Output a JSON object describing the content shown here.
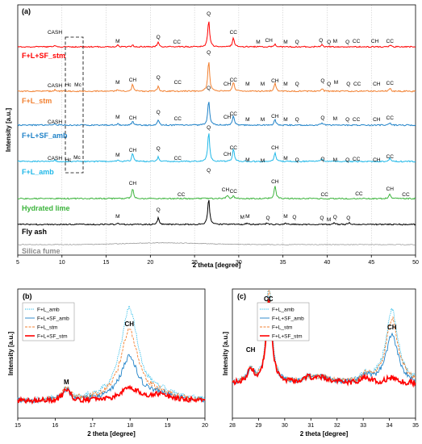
{
  "chart_data": [
    {
      "panel": "(a)",
      "type": "line",
      "xlabel": "2 theta [degree]",
      "ylabel": "Intensity [a.u.]",
      "xlim": [
        5,
        50
      ],
      "xticks": [
        5,
        10,
        15,
        20,
        25,
        30,
        35,
        40,
        45,
        50
      ],
      "grid": true,
      "series": [
        {
          "name": "F+L+SF_stm",
          "color": "#ff0000",
          "peaks": [
            [
              9.2,
              0.8
            ],
            [
              16.3,
              1.2
            ],
            [
              18.0,
              1.0
            ],
            [
              20.9,
              3.0
            ],
            [
              26.6,
              18.0
            ],
            [
              29.4,
              6.0
            ],
            [
              34.1,
              1.6
            ],
            [
              39.4,
              1.5
            ],
            [
              47.1,
              1.2
            ]
          ]
        },
        {
          "name": "F+L_stm",
          "color": "#f28030",
          "peaks": [
            [
              9.2,
              1.0
            ],
            [
              16.3,
              1.2
            ],
            [
              18.0,
              4.5
            ],
            [
              20.9,
              3.0
            ],
            [
              26.6,
              20.0
            ],
            [
              29.4,
              6.0
            ],
            [
              34.1,
              5.5
            ],
            [
              39.4,
              1.8
            ],
            [
              47.1,
              1.8
            ]
          ]
        },
        {
          "name": "F+L+SF_amb",
          "color": "#1f82c8",
          "peaks": [
            [
              9.2,
              0.8
            ],
            [
              16.3,
              1.0
            ],
            [
              18.0,
              2.5
            ],
            [
              20.9,
              3.0
            ],
            [
              26.6,
              16.0
            ],
            [
              29.4,
              6.0
            ],
            [
              34.1,
              3.5
            ],
            [
              39.4,
              1.5
            ],
            [
              47.1,
              1.3
            ]
          ]
        },
        {
          "name": "F+L_amb",
          "color": "#20b8e8",
          "peaks": [
            [
              9.2,
              1.0
            ],
            [
              16.3,
              1.0
            ],
            [
              18.0,
              5.0
            ],
            [
              20.9,
              3.0
            ],
            [
              26.6,
              19.0
            ],
            [
              29.4,
              8.0
            ],
            [
              34.1,
              6.0
            ],
            [
              39.4,
              1.8
            ],
            [
              47.1,
              2.0
            ]
          ]
        },
        {
          "name": "Hydrated lime",
          "color": "#3cb43c",
          "peaks": [
            [
              18.0,
              6.5
            ],
            [
              28.7,
              2.2
            ],
            [
              29.4,
              1.5
            ],
            [
              34.1,
              8.5
            ],
            [
              47.1,
              3.0
            ],
            [
              50.8,
              2.0
            ]
          ]
        },
        {
          "name": "Fly ash",
          "color": "#000000",
          "peaks": [
            [
              16.3,
              1.2
            ],
            [
              20.9,
              4.5
            ],
            [
              26.6,
              17.0
            ],
            [
              30.9,
              0.8
            ],
            [
              33.2,
              0.8
            ],
            [
              35.3,
              1.0
            ],
            [
              40.8,
              1.0
            ],
            [
              42.5,
              1.2
            ]
          ]
        },
        {
          "name": "Silica fume",
          "color": "#8c8c8c",
          "peaks": []
        }
      ],
      "peak_labels": {
        "F+L+SF_stm": [
          "CASH",
          "M",
          "Q",
          "CC",
          "Q",
          "CC",
          "M",
          "CH",
          "M",
          "Q",
          "Q",
          "Q",
          "M",
          "Q",
          "CC",
          "CH",
          "CC"
        ],
        "F+L_stm": [
          "CASH",
          "Hc",
          "Mc",
          "M",
          "CH",
          "Q",
          "CC",
          "Q",
          "CH",
          "CC",
          "M",
          "M",
          "CH",
          "M",
          "Q",
          "Q",
          "Q",
          "M",
          "Q",
          "CC",
          "CH",
          "CC"
        ],
        "F+L+SF_amb": [
          "CASH",
          "M",
          "CH",
          "Q",
          "CC",
          "Q",
          "CH",
          "CC",
          "M",
          "M",
          "CH",
          "M",
          "Q",
          "Q",
          "M",
          "Q",
          "CC",
          "CH",
          "CC"
        ],
        "F+L_amb": [
          "CASH",
          "Hc",
          "Mc",
          "M",
          "CH",
          "Q",
          "CC",
          "Q",
          "CH",
          "CC",
          "M",
          "M",
          "CH",
          "M",
          "Q",
          "Q",
          "M",
          "Q",
          "CC",
          "CH",
          "CC"
        ],
        "Hydrated lime": [
          "CH",
          "CC",
          "CH",
          "CC",
          "CH",
          "CC",
          "CC",
          "CH",
          "CC"
        ],
        "Fly ash": [
          "M",
          "Q",
          "Q",
          "M",
          "M",
          "Q",
          "M",
          "Q",
          "Q",
          "M",
          "Q",
          "Q"
        ]
      }
    },
    {
      "panel": "(b)",
      "type": "line",
      "xlabel": "2 theta [degree]",
      "ylabel": "Intensity [a.u.]",
      "xlim": [
        15,
        20
      ],
      "xticks": [
        15,
        16,
        17,
        18,
        19,
        20
      ],
      "annotations": [
        "M",
        "CH"
      ],
      "series": [
        {
          "name": "F+L_amb",
          "color": "#20b8e8",
          "style": "dotted",
          "ch_peak": 0.85
        },
        {
          "name": "F+L+SF_amb",
          "color": "#1f82c8",
          "style": "solid",
          "ch_peak": 0.4
        },
        {
          "name": "F+L_stm",
          "color": "#f28030",
          "style": "dashed",
          "ch_peak": 0.65
        },
        {
          "name": "F+L+SF_stm",
          "color": "#ff0000",
          "style": "solid-thick",
          "ch_peak": 0.12
        }
      ]
    },
    {
      "panel": "(c)",
      "type": "line",
      "xlabel": "2 theta [degree]",
      "ylabel": "Intensity [a.u.]",
      "xlim": [
        28,
        35
      ],
      "xticks": [
        28,
        29,
        30,
        31,
        32,
        33,
        34,
        35
      ],
      "annotations": [
        "CH",
        "CC",
        "CH"
      ],
      "series": [
        {
          "name": "F+L_amb",
          "color": "#20b8e8",
          "style": "dotted",
          "cc_peak": 0.95,
          "ch_peak": 0.68
        },
        {
          "name": "F+L+SF_amb",
          "color": "#1f82c8",
          "style": "solid",
          "cc_peak": 0.8,
          "ch_peak": 0.45
        },
        {
          "name": "F+L_stm",
          "color": "#f28030",
          "style": "dashed",
          "cc_peak": 0.88,
          "ch_peak": 0.6
        },
        {
          "name": "F+L+SF_stm",
          "color": "#ff0000",
          "style": "solid-thick",
          "cc_peak": 0.75,
          "ch_peak": 0.05
        }
      ]
    }
  ]
}
